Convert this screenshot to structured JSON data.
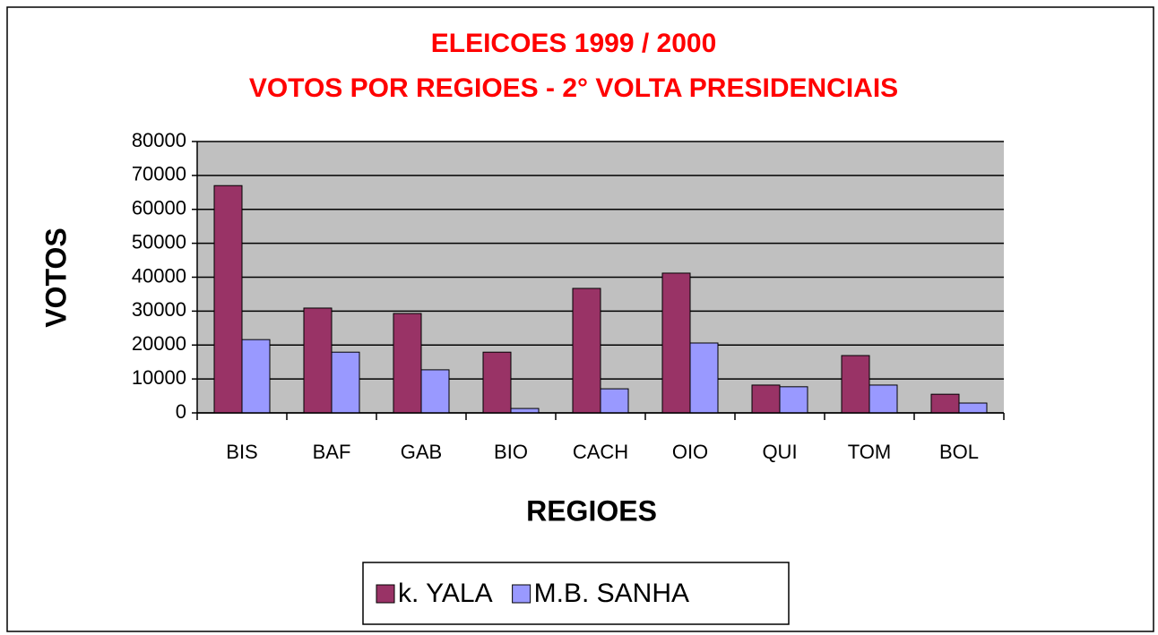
{
  "chart_data": {
    "type": "bar",
    "title": "ELEICOES 1999 / 2000",
    "subtitle": "VOTOS POR REGIOES - 2° VOLTA PRESIDENCIAIS",
    "x_label": "REGIOES",
    "y_label": "VOTOS",
    "categories": [
      "BIS",
      "BAF",
      "GAB",
      "BIO",
      "CACH",
      "OIO",
      "QUI",
      "TOM",
      "BOL"
    ],
    "series": [
      {
        "name": "k. YALA",
        "color": "#993366",
        "values": [
          67000,
          30900,
          29300,
          17900,
          36700,
          41200,
          8200,
          16900,
          5500
        ]
      },
      {
        "name": "M.B. SANHA",
        "color": "#9999ff",
        "values": [
          21600,
          17900,
          12700,
          1300,
          7100,
          20600,
          7700,
          8200,
          2900
        ]
      }
    ],
    "ylim": [
      0,
      80000
    ],
    "yticks": [
      0,
      10000,
      20000,
      30000,
      40000,
      50000,
      60000,
      70000,
      80000
    ],
    "grid": true
  }
}
